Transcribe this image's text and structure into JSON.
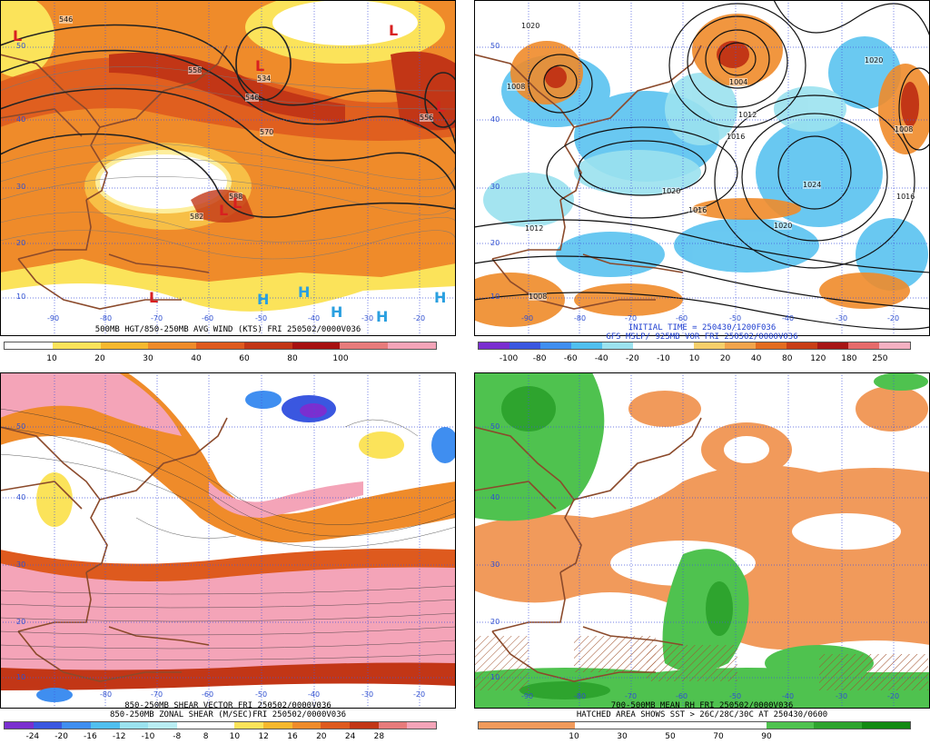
{
  "panels": [
    {
      "id": "p1",
      "captions": [
        "500MB HGT/850-250MB AVG WIND (KTS) FRI 250502/0000V036"
      ],
      "colorbar": {
        "colors": [
          "#ffffff",
          "#fbe35a",
          "#f6b82e",
          "#ef8b2a",
          "#de5a1e",
          "#c23616",
          "#a61010",
          "#e77b7b",
          "#f4a4b8"
        ],
        "labels": [
          "10",
          "20",
          "30",
          "40",
          "60",
          "80",
          "100"
        ]
      },
      "lat_labels": [
        "50",
        "40",
        "30",
        "20",
        "10"
      ],
      "lon_labels": [
        "-90",
        "-80",
        "-70",
        "-60",
        "-50",
        "-40",
        "-30",
        "-20"
      ],
      "contour_labels": [
        "546",
        "558",
        "546",
        "534",
        "570",
        "556",
        "582",
        "588"
      ],
      "highs_lows": [
        "L",
        "L",
        "L",
        "L",
        "L",
        "L",
        "L",
        "H",
        "H",
        "H",
        "H",
        "H"
      ]
    },
    {
      "id": "p2",
      "captions": [
        "INITIAL TIME = 250430/1200F036",
        "GFS MSLP/ 925MB VOR FRI 250502/0000V036"
      ],
      "colorbar": {
        "colors": [
          "#7a2fd0",
          "#3a57e0",
          "#3f8ef0",
          "#50bfef",
          "#9be2ef",
          "#ffffff",
          "#ffffff",
          "#f6cf6a",
          "#f2a44b",
          "#e36c1f",
          "#c83e16",
          "#a71616",
          "#e66b6b",
          "#f4b0c2"
        ],
        "labels": [
          "-100",
          "-80",
          "-60",
          "-40",
          "-20",
          "-10",
          "10",
          "20",
          "40",
          "80",
          "120",
          "180",
          "250"
        ]
      },
      "lat_labels": [
        "50",
        "40",
        "30",
        "20",
        "10"
      ],
      "lon_labels": [
        "-90",
        "-80",
        "-70",
        "-60",
        "-50",
        "-40",
        "-30",
        "-20"
      ],
      "contour_labels": [
        "1020",
        "1008",
        "1004",
        "1012",
        "1016",
        "1020",
        "1024",
        "1016",
        "1020",
        "1012",
        "1008",
        "1020",
        "1016",
        "1008"
      ],
      "highs_lows": []
    },
    {
      "id": "p3",
      "captions": [
        "850-250MB SHEAR VECTOR FRI 250502/0000V036",
        "850-250MB ZONAL SHEAR (M/SEC)FRI 250502/0000V036"
      ],
      "colorbar": {
        "colors": [
          "#7a2fd0",
          "#3a57e0",
          "#3f8ef0",
          "#50bfef",
          "#9be2ef",
          "#b9edf3",
          "#ffffff",
          "#ffffff",
          "#fbe35a",
          "#f6b82e",
          "#ef8b2a",
          "#de5a1e",
          "#c23616",
          "#e77b7b",
          "#f4a4b8"
        ],
        "labels": [
          "-24",
          "-20",
          "-16",
          "-12",
          "-10",
          "-8",
          "8",
          "10",
          "12",
          "16",
          "20",
          "24",
          "28"
        ]
      },
      "lat_labels": [
        "50",
        "40",
        "30",
        "20",
        "10"
      ],
      "lon_labels": [
        "-80",
        "-70",
        "-60",
        "-50",
        "-40",
        "-30",
        "-20"
      ],
      "contour_labels": [],
      "highs_lows": []
    },
    {
      "id": "p4",
      "captions": [
        "700-500MB MEAN RH FRI 250502/0000V036",
        "HATCHED AREA SHOWS SST > 26C/28C/30C AT 250430/0600"
      ],
      "colorbar": {
        "colors": [
          "#f19a5b",
          "#f19a5b",
          "#ffffff",
          "#ffffff",
          "#ffffff",
          "#ffffff",
          "#4fc24f",
          "#2ea42e",
          "#128a12"
        ],
        "labels": [
          "10",
          "30",
          "50",
          "70",
          "90"
        ]
      },
      "lat_labels": [
        "50",
        "40",
        "30",
        "20",
        "10"
      ],
      "lon_labels": [
        "-90",
        "-80",
        "-70",
        "-60",
        "-50",
        "-40",
        "-30",
        "-20"
      ],
      "contour_labels": [],
      "highs_lows": []
    }
  ]
}
